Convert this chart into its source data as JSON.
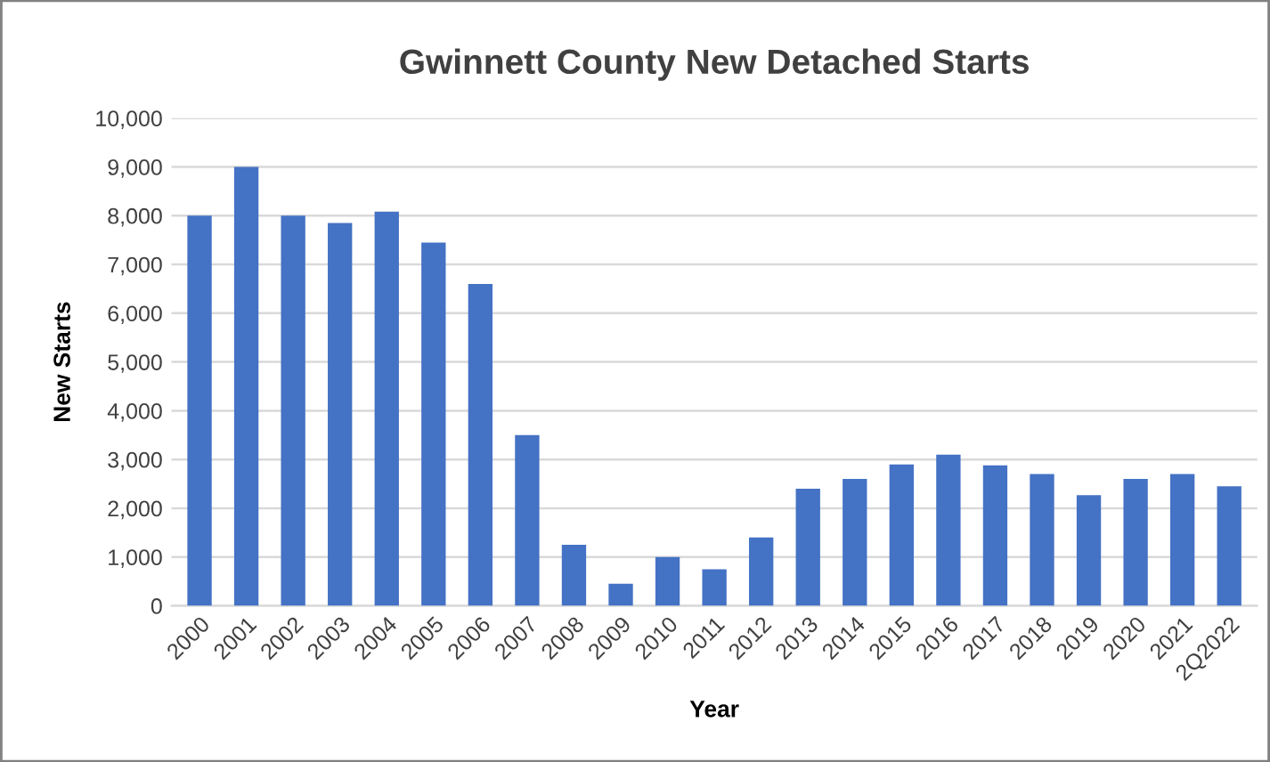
{
  "chart_data": {
    "type": "bar",
    "title": "Gwinnett County New Detached Starts",
    "xlabel": "Year",
    "ylabel": "New Starts",
    "categories": [
      "2000",
      "2001",
      "2002",
      "2003",
      "2004",
      "2005",
      "2006",
      "2007",
      "2008",
      "2009",
      "2010",
      "2011",
      "2012",
      "2013",
      "2014",
      "2015",
      "2016",
      "2017",
      "2018",
      "2019",
      "2020",
      "2021",
      "2Q2022"
    ],
    "values": [
      8000,
      9000,
      8000,
      7850,
      8080,
      7450,
      6600,
      3500,
      1250,
      450,
      1000,
      750,
      1400,
      2400,
      2600,
      2900,
      3100,
      2880,
      2700,
      2270,
      2600,
      2700,
      2450
    ],
    "color": "#4472c4",
    "ylim": [
      0,
      10000
    ],
    "yticks": [
      {
        "value": 0,
        "label": "0"
      },
      {
        "value": 1000,
        "label": "1,000"
      },
      {
        "value": 2000,
        "label": "2,000"
      },
      {
        "value": 3000,
        "label": "3,000"
      },
      {
        "value": 4000,
        "label": "4,000"
      },
      {
        "value": 5000,
        "label": "5,000"
      },
      {
        "value": 6000,
        "label": "6,000"
      },
      {
        "value": 7000,
        "label": "7,000"
      },
      {
        "value": 8000,
        "label": "8,000"
      },
      {
        "value": 9000,
        "label": "9,000"
      },
      {
        "value": 10000,
        "label": "10,000"
      }
    ],
    "grid": "y",
    "legend": false
  }
}
